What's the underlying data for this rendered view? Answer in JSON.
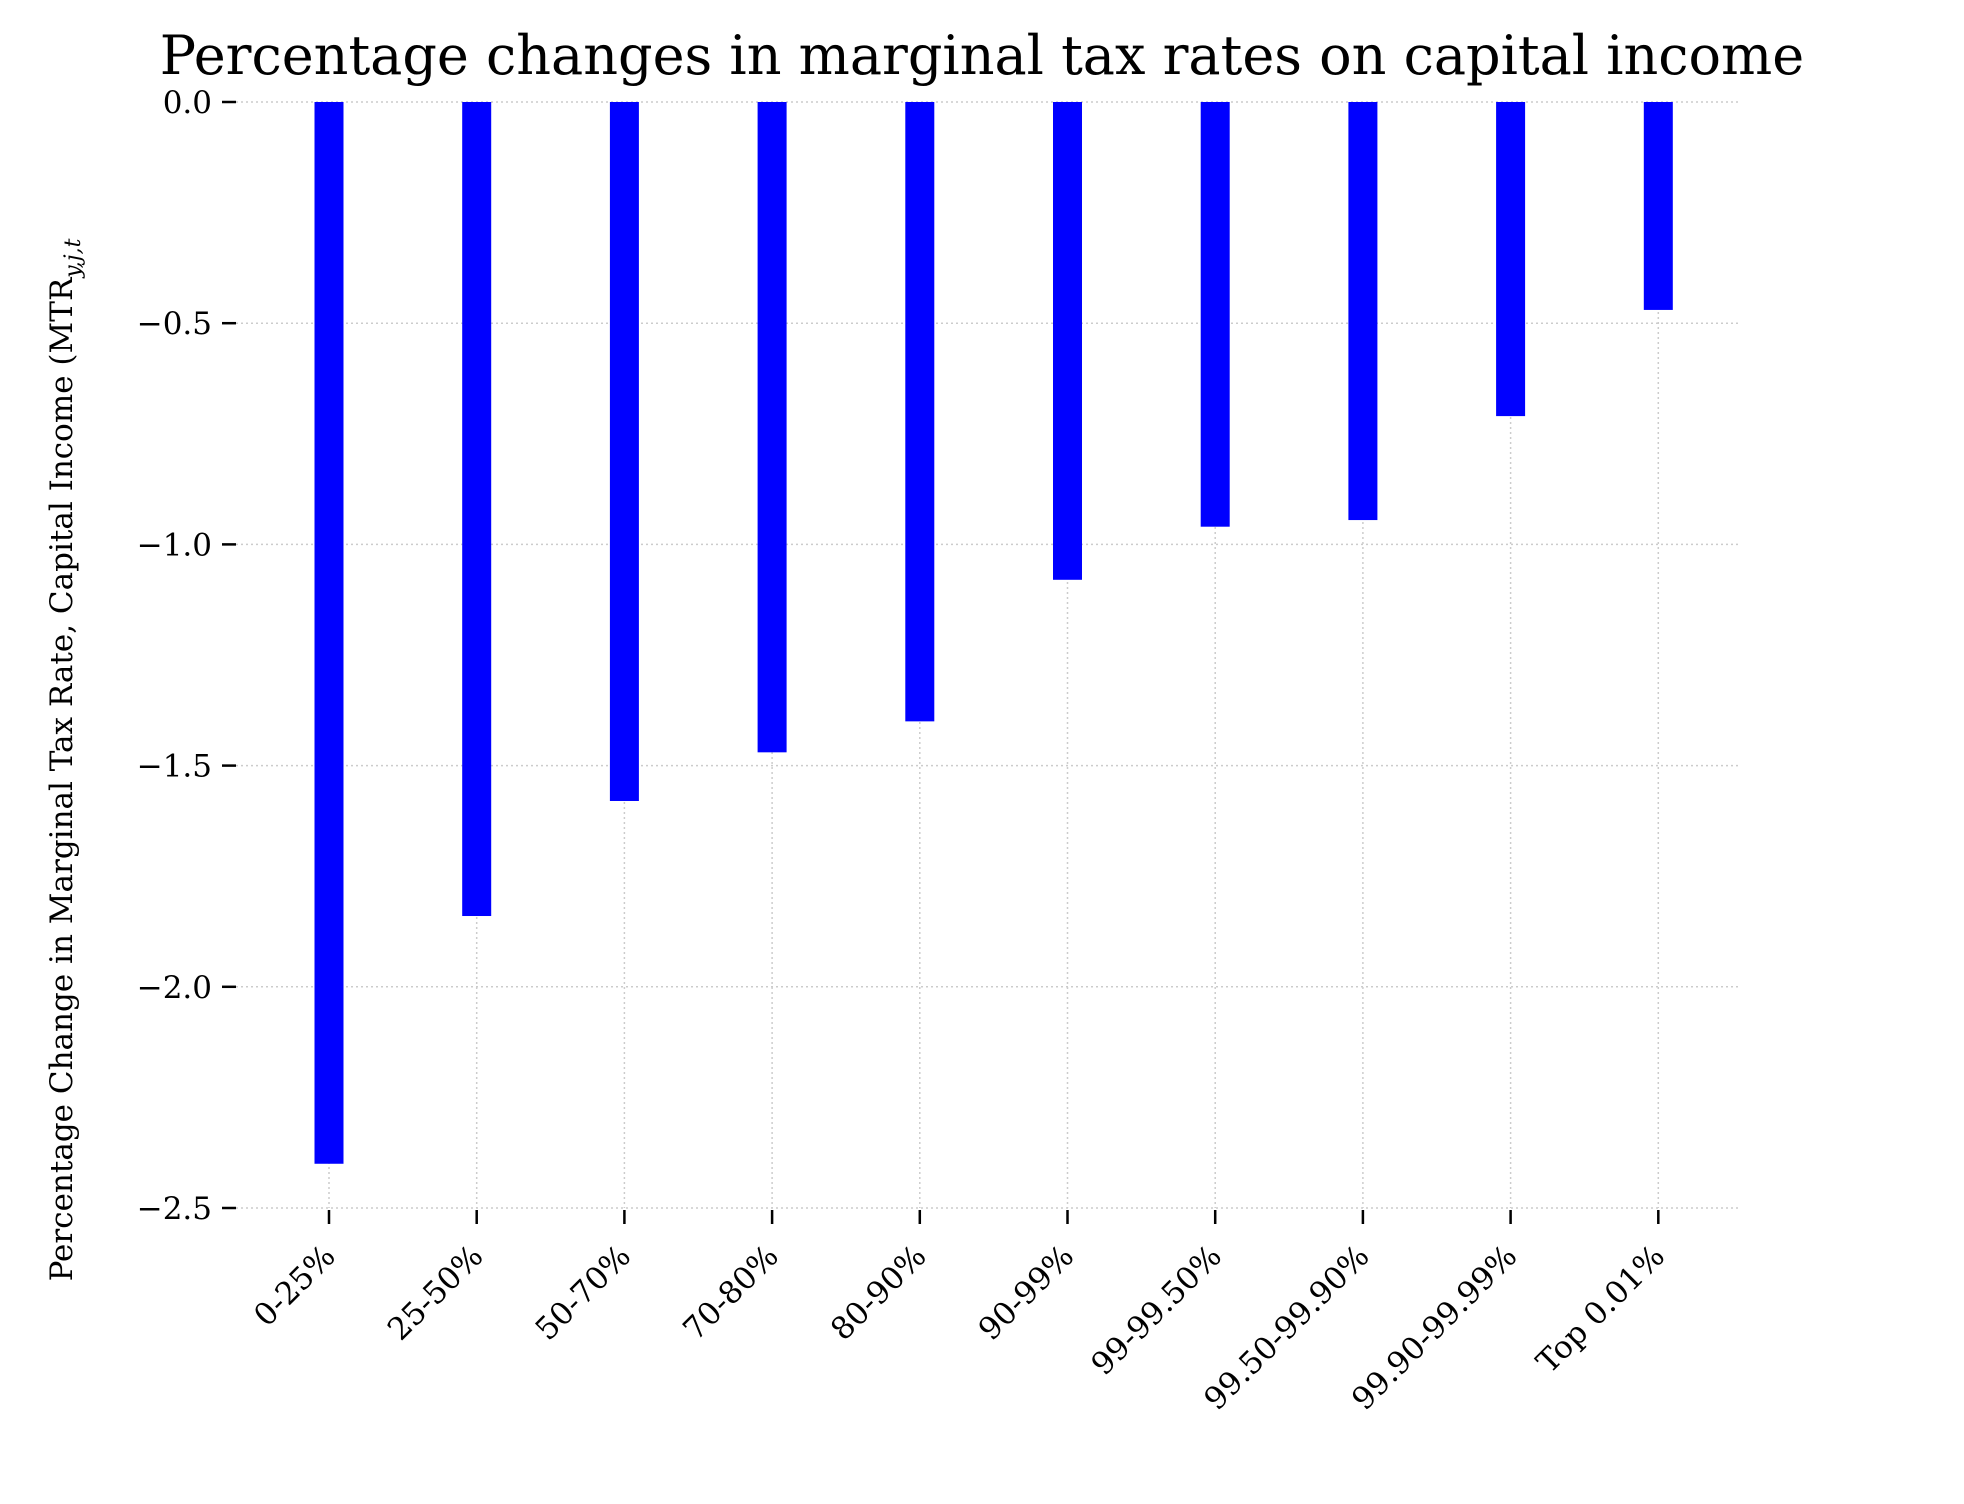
{
  "chart_data": {
    "type": "bar",
    "title": "Percentage changes in marginal tax rates on capital income",
    "xlabel": "",
    "ylabel": "Percentage Change in Marginal Tax Rate, Capital Income (MTR",
    "ylabel_subscript": "y,j,t",
    "categories": [
      "0-25%",
      "25-50%",
      "50-70%",
      "70-80%",
      "80-90%",
      "90-99%",
      "99-99.50%",
      "99.50-99.90%",
      "99.90-99.99%",
      "Top 0.01%"
    ],
    "values": [
      -2.4,
      -1.84,
      -1.58,
      -1.47,
      -1.4,
      -1.08,
      -0.96,
      -0.945,
      -0.71,
      -0.47
    ],
    "ylim": [
      -2.5,
      0.0
    ],
    "yticks": [
      "0.0",
      "−0.5",
      "−1.0",
      "−1.5",
      "−2.0",
      "−2.5"
    ],
    "ytick_values": [
      0.0,
      -0.5,
      -1.0,
      -1.5,
      -2.0,
      -2.5
    ],
    "grid": true,
    "legend": "none",
    "bar_color": "#0000ff",
    "grid_color": "#cccccc"
  }
}
